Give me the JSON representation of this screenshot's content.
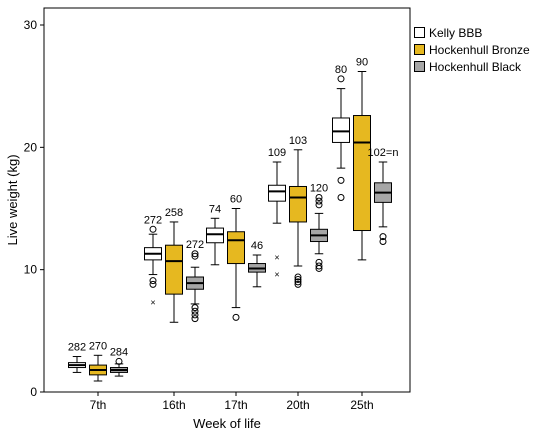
{
  "chart_data": {
    "type": "boxplot",
    "xlabel": "Week of life",
    "ylabel": "Live weight (kg)",
    "ylim": [
      0,
      30
    ],
    "yticks": [
      0,
      10,
      20,
      30
    ],
    "categories": [
      "7th",
      "16th",
      "17th",
      "20th",
      "25th"
    ],
    "grid": false,
    "legend_position": "top-right",
    "series": [
      {
        "name": "Kelly BBB",
        "color": "#ffffff",
        "boxes": [
          {
            "min": 1.6,
            "q1": 2.0,
            "median": 2.2,
            "q3": 2.4,
            "max": 2.9,
            "n": "282",
            "outliers": [],
            "extremes": []
          },
          {
            "min": 9.6,
            "q1": 10.8,
            "median": 11.3,
            "q3": 11.8,
            "max": 12.9,
            "n": "272",
            "outliers": [
              13.3,
              9.1,
              8.8
            ],
            "extremes": [
              7.3
            ]
          },
          {
            "min": 10.4,
            "q1": 12.2,
            "median": 12.9,
            "q3": 13.4,
            "max": 14.2,
            "n": "74",
            "outliers": [],
            "extremes": []
          },
          {
            "min": 13.8,
            "q1": 15.6,
            "median": 16.4,
            "q3": 16.9,
            "max": 18.8,
            "n": "109",
            "outliers": [],
            "extremes": [
              11.0,
              9.6
            ]
          },
          {
            "min": 18.3,
            "q1": 20.4,
            "median": 21.3,
            "q3": 22.4,
            "max": 24.8,
            "n": "80",
            "outliers": [
              25.6,
              17.3,
              15.9
            ],
            "extremes": []
          }
        ]
      },
      {
        "name": "Hockenhull Bronze",
        "color": "#e6b820",
        "boxes": [
          {
            "min": 0.9,
            "q1": 1.4,
            "median": 1.8,
            "q3": 2.2,
            "max": 3.0,
            "n": "270",
            "outliers": [],
            "extremes": []
          },
          {
            "min": 5.7,
            "q1": 8.0,
            "median": 10.7,
            "q3": 12.0,
            "max": 13.9,
            "n": "258",
            "outliers": [],
            "extremes": []
          },
          {
            "min": 6.9,
            "q1": 10.5,
            "median": 12.4,
            "q3": 13.1,
            "max": 15.0,
            "n": "60",
            "outliers": [
              6.1
            ],
            "extremes": []
          },
          {
            "min": 10.3,
            "q1": 13.9,
            "median": 15.9,
            "q3": 16.8,
            "max": 19.8,
            "n": "103",
            "outliers": [
              9.4,
              9.2,
              9.0,
              8.8
            ],
            "extremes": []
          },
          {
            "min": 10.8,
            "q1": 13.2,
            "median": 20.4,
            "q3": 22.6,
            "max": 26.2,
            "n": "90",
            "outliers": [],
            "extremes": []
          }
        ]
      },
      {
        "name": "Hockenhull Black",
        "color": "#a6a6a6",
        "boxes": [
          {
            "min": 1.3,
            "q1": 1.6,
            "median": 1.8,
            "q3": 2.0,
            "max": 2.3,
            "n": "284",
            "outliers": [
              2.5
            ],
            "extremes": []
          },
          {
            "min": 7.2,
            "q1": 8.4,
            "median": 8.9,
            "q3": 9.4,
            "max": 10.2,
            "n": "272",
            "outliers": [
              11.3,
              11.1,
              6.9,
              6.6,
              6.3,
              6.0
            ],
            "extremes": []
          },
          {
            "min": 8.6,
            "q1": 9.8,
            "median": 10.1,
            "q3": 10.5,
            "max": 11.2,
            "n": "46",
            "outliers": [],
            "extremes": []
          },
          {
            "min": 11.3,
            "q1": 12.3,
            "median": 12.8,
            "q3": 13.3,
            "max": 14.6,
            "n": "120",
            "outliers": [
              15.9,
              15.6,
              15.3,
              10.6,
              10.3,
              10.1
            ],
            "extremes": []
          },
          {
            "min": 13.5,
            "q1": 15.5,
            "median": 16.3,
            "q3": 17.1,
            "max": 18.8,
            "n": "102=n",
            "outliers": [
              12.7,
              12.3
            ],
            "extremes": []
          }
        ]
      }
    ]
  }
}
